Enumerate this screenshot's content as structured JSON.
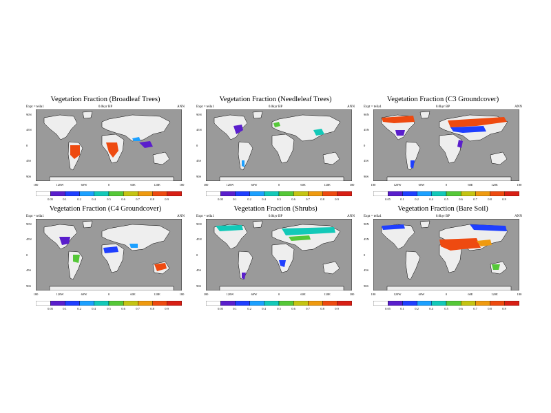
{
  "map_common": {
    "period": "0.0kyr BP",
    "season": "ANN",
    "x_ticks": [
      "180",
      "120W",
      "60W",
      "0",
      "60E",
      "120E",
      "180"
    ],
    "y_ticks": [
      "90N",
      "45N",
      "0",
      "45S",
      "90S"
    ],
    "colorbar_labels": [
      "0.05",
      "0.1",
      "0.2",
      "0.4",
      "0.5",
      "0.6",
      "0.7",
      "0.8",
      "0.9"
    ],
    "colorbar_colors": [
      "#ffffff",
      "#5a1ecc",
      "#1f3fff",
      "#1ca0ff",
      "#13c9b8",
      "#55c838",
      "#c4c413",
      "#ef9a10",
      "#ee4a10",
      "#d81f15"
    ],
    "ocean_color": "#9a9a9a",
    "land_color": "#eeeeee"
  },
  "panels": [
    {
      "title": "Vegetation Fraction (Broadleaf Trees)",
      "expt": "Expt = teila1"
    },
    {
      "title": "Vegetation Fraction (Needleleaf Trees)",
      "expt": "Expt = teila1"
    },
    {
      "title": "Vegetation Fraction (C3 Groundcover)",
      "expt": "Expt = teila1"
    },
    {
      "title": "Vegetation Fraction (C4 Groundcover)",
      "expt": "Expt = teila1"
    },
    {
      "title": "Vegetation Fraction (Shrubs)",
      "expt": "Expt = teila1"
    },
    {
      "title": "Vegetation Fraction (Bare Soil)",
      "expt": "Expt = teila1"
    }
  ]
}
